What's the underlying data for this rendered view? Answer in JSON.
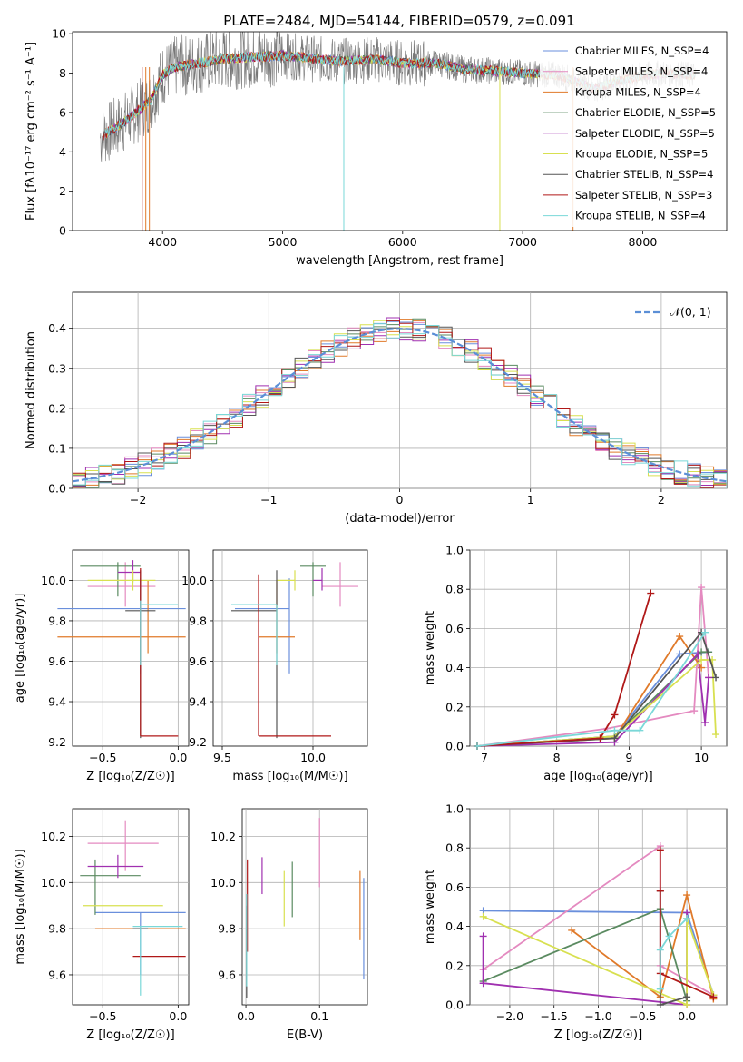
{
  "chart_data": [
    {
      "type": "line",
      "title": "PLATE=2484, MJD=54144, FIBERID=0579, z=0.091",
      "xlabel": "wavelength [Angstrom, rest frame]",
      "ylabel": "Flux [fλ10⁻¹⁷ erg cm⁻² s⁻¹ A⁻¹]",
      "xlim": [
        3250,
        8700
      ],
      "ylim": [
        0,
        10.1
      ],
      "xticks": [
        "4000",
        "5000",
        "6000",
        "7000",
        "8000"
      ],
      "yticks": [
        "0",
        "2",
        "4",
        "6",
        "8",
        "10"
      ],
      "legend_position": "right",
      "series": [
        {
          "name": "Chabrier MILES, N_SSP=4",
          "color": "#6a8fdc"
        },
        {
          "name": "Salpeter MILES, N_SSP=4",
          "color": "#e48ac0"
        },
        {
          "name": "Kroupa MILES, N_SSP=4",
          "color": "#e07a2a"
        },
        {
          "name": "Chabrier ELODIE, N_SSP=5",
          "color": "#5a8a60"
        },
        {
          "name": "Salpeter ELODIE, N_SSP=5",
          "color": "#a030b0"
        },
        {
          "name": "Kroupa ELODIE, N_SSP=5",
          "color": "#d8e050"
        },
        {
          "name": "Chabrier STELIB, N_SSP=4",
          "color": "#555555"
        },
        {
          "name": "Salpeter STELIB, N_SSP=3",
          "color": "#b01818"
        },
        {
          "name": "Kroupa STELIB, N_SSP=4",
          "color": "#7ad8d8"
        }
      ],
      "data": {
        "wavelength": [
          3500,
          3700,
          3900,
          4000,
          4100,
          4300,
          4500,
          4700,
          5000,
          5300,
          5500,
          5800,
          6000,
          6300,
          6500,
          6800,
          7000,
          7300,
          7600,
          7800,
          8000,
          8200,
          8400
        ],
        "flux": [
          4.8,
          5.6,
          6.6,
          7.9,
          8.3,
          8.5,
          8.7,
          8.8,
          8.9,
          8.7,
          8.6,
          8.7,
          8.5,
          8.5,
          8.2,
          8.1,
          8.0,
          7.9,
          7.2,
          7.6,
          7.9,
          8.0,
          7.9
        ]
      }
    },
    {
      "type": "histogram",
      "xlabel": "(data-model)/error",
      "ylabel": "Normed distribution",
      "xlim": [
        -2.5,
        2.5
      ],
      "ylim": [
        0,
        0.49
      ],
      "xticks": [
        "−2",
        "−1",
        "0",
        "1",
        "2"
      ],
      "yticks": [
        "0.0",
        "0.1",
        "0.2",
        "0.3",
        "0.4"
      ],
      "legend": [
        {
          "name": "𝒩(0, 1)",
          "color": "#5b8fd6",
          "style": "dashed"
        }
      ],
      "bin_edges": [
        -2.5,
        -2.4,
        -2.3,
        -2.2,
        -2.1,
        -2.0,
        -1.9,
        -1.8,
        -1.7,
        -1.6,
        -1.5,
        -1.4,
        -1.3,
        -1.2,
        -1.1,
        -1.0,
        -0.9,
        -0.8,
        -0.7,
        -0.6,
        -0.5,
        -0.4,
        -0.3,
        -0.2,
        -0.1,
        0.0,
        0.1,
        0.2,
        0.3,
        0.4,
        0.5,
        0.6,
        0.7,
        0.8,
        0.9,
        1.0,
        1.1,
        1.2,
        1.3,
        1.4,
        1.5,
        1.6,
        1.7,
        1.8,
        1.9,
        2.0,
        2.1,
        2.2,
        2.3,
        2.4,
        2.5
      ]
    },
    {
      "type": "scatter",
      "xlabel": "Z [log₁₀(Z/Z☉)]",
      "ylabel": "age [log₁₀(age/yr)]",
      "xlim": [
        -0.7,
        0.07
      ],
      "ylim": [
        9.18,
        10.15
      ],
      "xticks": [
        "−0.5",
        "0.0"
      ],
      "yticks": [
        "9.2",
        "9.4",
        "9.6",
        "9.8",
        "10.0"
      ],
      "points": [
        {
          "series": "Chabrier MILES",
          "x": -0.25,
          "y": 9.86,
          "xerr": [
            0.55,
            0.3
          ],
          "yerr": [
            0.32,
            0.15
          ],
          "color": "#6a8fdc"
        },
        {
          "series": "Salpeter MILES",
          "x": -0.35,
          "y": 9.97,
          "xerr": [
            0.25,
            0.2
          ],
          "yerr": [
            0.1,
            0.12
          ],
          "color": "#e48ac0"
        },
        {
          "series": "Kroupa MILES",
          "x": -0.2,
          "y": 9.72,
          "xerr": [
            0.6,
            0.25
          ],
          "yerr": [
            0.08,
            0.28
          ],
          "color": "#e07a2a"
        },
        {
          "series": "Chabrier ELODIE",
          "x": -0.4,
          "y": 10.07,
          "xerr": [
            0.25,
            0.15
          ],
          "yerr": [
            0.15,
            0.02
          ],
          "color": "#5a8a60"
        },
        {
          "series": "Salpeter ELODIE",
          "x": -0.3,
          "y": 10.04,
          "xerr": [
            0.1,
            0.05
          ],
          "yerr": [
            0.05,
            0.06
          ],
          "color": "#a030b0"
        },
        {
          "series": "Kroupa ELODIE",
          "x": -0.3,
          "y": 10.0,
          "xerr": [
            0.3,
            0.15
          ],
          "yerr": [
            0.05,
            0.05
          ],
          "color": "#d8e050"
        },
        {
          "series": "Chabrier STELIB",
          "x": -0.25,
          "y": 9.85,
          "xerr": [
            0.1,
            0.1
          ],
          "yerr": [
            0.63,
            0.2
          ],
          "color": "#555555"
        },
        {
          "series": "Salpeter STELIB",
          "x": -0.25,
          "y": 9.23,
          "xerr": [
            0.0,
            0.25
          ],
          "yerr": [
            0.0,
            0.83
          ],
          "color": "#b01818"
        },
        {
          "series": "Kroupa STELIB",
          "x": -0.25,
          "y": 9.88,
          "xerr": [
            0.0,
            0.25
          ],
          "yerr": [
            0.3,
            0.02
          ],
          "color": "#7ad8d8"
        }
      ]
    },
    {
      "type": "scatter",
      "xlabel": "mass [log₁₀(M/M☉)]",
      "ylabel": "",
      "xlim": [
        9.45,
        10.3
      ],
      "ylim": [
        9.18,
        10.15
      ],
      "xticks": [
        "9.5",
        "10.0"
      ],
      "yticks": [
        "9.2",
        "9.4",
        "9.6",
        "9.8",
        "10.0"
      ],
      "points": [
        {
          "series": "Chabrier MILES",
          "x": 9.87,
          "y": 9.86,
          "xerr": [
            0.3,
            0.0
          ],
          "yerr": [
            0.32,
            0.15
          ],
          "color": "#6a8fdc"
        },
        {
          "series": "Salpeter MILES",
          "x": 10.15,
          "y": 9.97,
          "xerr": [
            0.1,
            0.1
          ],
          "yerr": [
            0.1,
            0.12
          ],
          "color": "#e48ac0"
        },
        {
          "series": "Kroupa MILES",
          "x": 9.8,
          "y": 9.72,
          "xerr": [
            0.1,
            0.1
          ],
          "yerr": [
            0.08,
            0.28
          ],
          "color": "#e07a2a"
        },
        {
          "series": "Chabrier ELODIE",
          "x": 10.0,
          "y": 10.07,
          "xerr": [
            0.07,
            0.07
          ],
          "yerr": [
            0.15,
            0.02
          ],
          "color": "#5a8a60"
        },
        {
          "series": "Salpeter ELODIE",
          "x": 10.05,
          "y": 10.0,
          "xerr": [
            0.05,
            0.0
          ],
          "yerr": [
            0.05,
            0.06
          ],
          "color": "#a030b0"
        },
        {
          "series": "Kroupa ELODIE",
          "x": 9.9,
          "y": 10.0,
          "xerr": [
            0.1,
            0.0
          ],
          "yerr": [
            0.05,
            0.05
          ],
          "color": "#d8e050"
        },
        {
          "series": "Chabrier STELIB",
          "x": 9.8,
          "y": 9.85,
          "xerr": [
            0.25,
            0.0
          ],
          "yerr": [
            0.63,
            0.2
          ],
          "color": "#555555"
        },
        {
          "series": "Salpeter STELIB",
          "x": 9.7,
          "y": 9.23,
          "xerr": [
            0.0,
            0.4
          ],
          "yerr": [
            0.0,
            0.8
          ],
          "color": "#b01818"
        },
        {
          "series": "Kroupa STELIB",
          "x": 9.8,
          "y": 9.88,
          "xerr": [
            0.25,
            0.0
          ],
          "yerr": [
            0.3,
            0.0
          ],
          "color": "#7ad8d8"
        }
      ]
    },
    {
      "type": "line",
      "xlabel": "age [log₁₀(age/yr)]",
      "ylabel": "mass weight",
      "xlim": [
        6.8,
        10.35
      ],
      "ylim": [
        0,
        1.0
      ],
      "xticks": [
        "7",
        "8",
        "9",
        "10"
      ],
      "yticks": [
        "0.0",
        "0.2",
        "0.4",
        "0.6",
        "0.8",
        "1.0"
      ],
      "series": [
        {
          "name": "Chabrier MILES",
          "color": "#6a8fdc",
          "x": [
            6.9,
            8.8,
            9.7,
            10.1
          ],
          "y": [
            0.0,
            0.05,
            0.47,
            0.48
          ]
        },
        {
          "name": "Salpeter MILES",
          "color": "#e48ac0",
          "x": [
            6.9,
            8.7,
            9.9,
            10.0,
            10.1
          ],
          "y": [
            0.0,
            0.09,
            0.18,
            0.81,
            0.35
          ]
        },
        {
          "name": "Kroupa MILES",
          "color": "#e07a2a",
          "x": [
            6.9,
            8.8,
            9.7,
            10.0
          ],
          "y": [
            0.0,
            0.04,
            0.56,
            0.4
          ]
        },
        {
          "name": "Chabrier ELODIE",
          "color": "#5a8a60",
          "x": [
            6.9,
            8.8,
            10.0,
            10.1
          ],
          "y": [
            0.0,
            0.05,
            0.48,
            0.48
          ]
        },
        {
          "name": "Salpeter ELODIE",
          "color": "#a030b0",
          "x": [
            6.9,
            8.8,
            9.95,
            10.05,
            10.1
          ],
          "y": [
            0.0,
            0.02,
            0.47,
            0.12,
            0.35
          ]
        },
        {
          "name": "Kroupa ELODIE",
          "color": "#d8e050",
          "x": [
            6.9,
            8.8,
            10.0,
            10.15,
            10.2
          ],
          "y": [
            0.0,
            0.05,
            0.44,
            0.44,
            0.06
          ]
        },
        {
          "name": "Chabrier STELIB",
          "color": "#555555",
          "x": [
            6.9,
            8.8,
            10.0,
            10.2
          ],
          "y": [
            0.0,
            0.04,
            0.58,
            0.35
          ]
        },
        {
          "name": "Salpeter STELIB",
          "color": "#b01818",
          "x": [
            6.9,
            8.6,
            8.8,
            9.3
          ],
          "y": [
            0.0,
            0.04,
            0.16,
            0.78
          ]
        },
        {
          "name": "Kroupa STELIB",
          "color": "#7ad8d8",
          "x": [
            6.9,
            8.8,
            9.15,
            10.05
          ],
          "y": [
            0.0,
            0.08,
            0.08,
            0.58
          ]
        }
      ]
    },
    {
      "type": "scatter",
      "xlabel": "Z [log₁₀(Z/Z☉)]",
      "ylabel": "mass [log₁₀(M/M☉)]",
      "xlim": [
        -0.7,
        0.07
      ],
      "ylim": [
        9.47,
        10.32
      ],
      "xticks": [
        "−0.5",
        "0.0"
      ],
      "yticks": [
        "9.6",
        "9.8",
        "10.0",
        "10.2"
      ],
      "points": [
        {
          "series": "Chabrier MILES",
          "x": -0.25,
          "y": 9.87,
          "xerr": [
            0.3,
            0.3
          ],
          "yerr": [
            0.27,
            0.0
          ],
          "color": "#6a8fdc"
        },
        {
          "series": "Salpeter MILES",
          "x": -0.35,
          "y": 10.17,
          "xerr": [
            0.25,
            0.22
          ],
          "yerr": [
            0.12,
            0.1
          ],
          "color": "#e48ac0"
        },
        {
          "series": "Kroupa MILES",
          "x": -0.25,
          "y": 9.8,
          "xerr": [
            0.3,
            0.3
          ],
          "yerr": [
            0.0,
            0.0
          ],
          "color": "#e07a2a"
        },
        {
          "series": "Chabrier ELODIE",
          "x": -0.55,
          "y": 10.03,
          "xerr": [
            0.1,
            0.3
          ],
          "yerr": [
            0.17,
            0.07
          ],
          "color": "#5a8a60"
        },
        {
          "series": "Salpeter ELODIE",
          "x": -0.4,
          "y": 10.07,
          "xerr": [
            0.2,
            0.17
          ],
          "yerr": [
            0.05,
            0.05
          ],
          "color": "#a030b0"
        },
        {
          "series": "Kroupa ELODIE",
          "x": -0.35,
          "y": 9.9,
          "xerr": [
            0.28,
            0.25
          ],
          "yerr": [
            0.0,
            0.0
          ],
          "color": "#d8e050"
        },
        {
          "series": "Chabrier STELIB",
          "x": -0.25,
          "y": 9.8,
          "xerr": [
            0.05,
            0.05
          ],
          "yerr": [
            0.0,
            0.0
          ],
          "color": "#555555"
        },
        {
          "series": "Salpeter STELIB",
          "x": -0.25,
          "y": 9.68,
          "xerr": [
            0.05,
            0.3
          ],
          "yerr": [
            0.0,
            0.0
          ],
          "color": "#b01818"
        },
        {
          "series": "Kroupa STELIB",
          "x": -0.25,
          "y": 9.81,
          "xerr": [
            0.05,
            0.28
          ],
          "yerr": [
            0.3,
            0.0
          ],
          "color": "#7ad8d8"
        }
      ]
    },
    {
      "type": "scatter",
      "xlabel": "E(B-V)",
      "ylabel": "",
      "xlim": [
        -0.005,
        0.165
      ],
      "ylim": [
        9.47,
        10.32
      ],
      "xticks": [
        "0.0",
        "0.1"
      ],
      "yticks": [
        "9.6",
        "9.8",
        "10.0",
        "10.2"
      ],
      "points": [
        {
          "series": "Chabrier MILES",
          "x": 0.16,
          "y": 9.8,
          "yerr": [
            0.22,
            0.22
          ],
          "color": "#6a8fdc"
        },
        {
          "series": "Salpeter MILES",
          "x": 0.1,
          "y": 10.13,
          "yerr": [
            0.15,
            0.15
          ],
          "color": "#e48ac0"
        },
        {
          "series": "Kroupa MILES",
          "x": 0.155,
          "y": 9.9,
          "yerr": [
            0.15,
            0.15
          ],
          "color": "#e07a2a"
        },
        {
          "series": "Chabrier ELODIE",
          "x": 0.063,
          "y": 9.97,
          "yerr": [
            0.12,
            0.12
          ],
          "color": "#5a8a60"
        },
        {
          "series": "Salpeter ELODIE",
          "x": 0.022,
          "y": 10.03,
          "yerr": [
            0.08,
            0.08
          ],
          "color": "#a030b0"
        },
        {
          "series": "Kroupa ELODIE",
          "x": 0.052,
          "y": 9.93,
          "yerr": [
            0.12,
            0.12
          ],
          "color": "#d8e050"
        },
        {
          "series": "Chabrier STELIB",
          "x": 0.001,
          "y": 9.7,
          "yerr": [
            0.2,
            0.2
          ],
          "color": "#555555"
        },
        {
          "series": "Salpeter STELIB",
          "x": 0.002,
          "y": 9.9,
          "yerr": [
            0.2,
            0.2
          ],
          "color": "#b01818"
        },
        {
          "series": "Kroupa STELIB",
          "x": 0.001,
          "y": 9.75,
          "yerr": [
            0.2,
            0.2
          ],
          "color": "#7ad8d8"
        }
      ]
    },
    {
      "type": "line",
      "xlabel": "Z [log₁₀(Z/Z☉)]",
      "ylabel": "mass weight",
      "xlim": [
        -2.45,
        0.45
      ],
      "ylim": [
        0,
        1.0
      ],
      "xticks": [
        "−2.0",
        "−1.5",
        "−1.0",
        "−0.5",
        "0.0"
      ],
      "yticks": [
        "0.0",
        "0.2",
        "0.4",
        "0.6",
        "0.8",
        "1.0"
      ],
      "series": [
        {
          "name": "Chabrier MILES",
          "color": "#6a8fdc",
          "x": [
            -2.3,
            0.0,
            0.3
          ],
          "y": [
            0.48,
            0.47,
            0.05
          ]
        },
        {
          "name": "Salpeter MILES",
          "color": "#e48ac0",
          "x": [
            -2.3,
            -0.3,
            -0.3,
            0.3
          ],
          "y": [
            0.18,
            0.81,
            0.2,
            0.05
          ]
        },
        {
          "name": "Kroupa MILES",
          "color": "#e07a2a",
          "x": [
            -1.3,
            -0.3,
            0.0,
            0.3
          ],
          "y": [
            0.38,
            0.04,
            0.56,
            0.03
          ]
        },
        {
          "name": "Chabrier ELODIE",
          "color": "#5a8a60",
          "x": [
            -2.3,
            -0.3,
            0.0
          ],
          "y": [
            0.12,
            0.49,
            0.02
          ]
        },
        {
          "name": "Salpeter ELODIE",
          "color": "#a030b0",
          "x": [
            -2.3,
            -2.3,
            0.0,
            0.0
          ],
          "y": [
            0.35,
            0.11,
            0.0,
            0.47
          ]
        },
        {
          "name": "Kroupa ELODIE",
          "color": "#d8e050",
          "x": [
            -2.3,
            0.0,
            0.0,
            0.3
          ],
          "y": [
            0.45,
            0.0,
            0.44,
            0.05
          ]
        },
        {
          "name": "Chabrier STELIB",
          "color": "#555555",
          "x": [
            -0.3,
            -0.3,
            0.0
          ],
          "y": [
            0.58,
            0.0,
            0.04
          ]
        },
        {
          "name": "Salpeter STELIB",
          "color": "#b01818",
          "x": [
            -0.3,
            -0.3,
            -0.3,
            0.3
          ],
          "y": [
            0.79,
            0.58,
            0.16,
            0.04
          ]
        },
        {
          "name": "Kroupa STELIB",
          "color": "#7ad8d8",
          "x": [
            -0.3,
            -0.3,
            -0.2,
            0.0
          ],
          "y": [
            0.08,
            0.28,
            0.35,
            0.44
          ]
        }
      ]
    }
  ]
}
